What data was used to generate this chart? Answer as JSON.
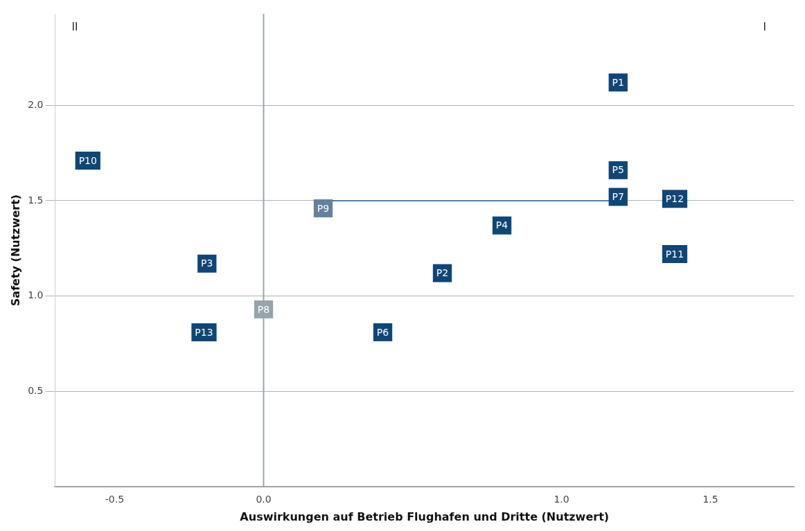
{
  "chart_data": {
    "type": "scatter",
    "xlabel": "Auswirkungen auf Betrieb Flughafen und Dritte (Nutzwert)",
    "ylabel": "Safety (Nutzwert)",
    "xlim": [
      -0.7,
      1.78
    ],
    "ylim": [
      0,
      2.48
    ],
    "xticks": [
      -0.5,
      {
        "value": 0,
        "label": "0.0"
      },
      {
        "value": 1,
        "label": "1.0"
      },
      1.5
    ],
    "yticks": [
      0.5,
      {
        "value": 1,
        "label": "1.0"
      },
      1.5,
      {
        "value": 2,
        "label": "2.0"
      }
    ],
    "grid": "y",
    "legend": false,
    "marker": "square",
    "ref_lines": [
      {
        "axis": "x",
        "value": 0,
        "color": "#9aa6ab"
      }
    ],
    "annotations": [
      "II",
      "I"
    ],
    "series": [
      {
        "type": "line",
        "color": "#2f5f8f",
        "x": [
          0.2,
          1.19
        ],
        "values": [
          1.5,
          1.5
        ],
        "marker": "none"
      },
      {
        "name": "P1",
        "color": "#0f4677",
        "x": [
          1.19
        ],
        "values": [
          2.12
        ]
      },
      {
        "name": "P2",
        "color": "#0f4677",
        "x": [
          0.6
        ],
        "values": [
          1.12
        ]
      },
      {
        "name": "P3",
        "color": "#0f4677",
        "x": [
          -0.19
        ],
        "values": [
          1.17
        ]
      },
      {
        "name": "P4",
        "color": "#0f4677",
        "x": [
          0.8
        ],
        "values": [
          1.37
        ]
      },
      {
        "name": "P5",
        "color": "#0f4677",
        "x": [
          1.19
        ],
        "values": [
          1.66
        ]
      },
      {
        "name": "P6",
        "color": "#0f4677",
        "x": [
          0.4
        ],
        "values": [
          0.81
        ]
      },
      {
        "name": "P7",
        "color": "#0f4677",
        "x": [
          1.19
        ],
        "values": [
          1.52
        ]
      },
      {
        "name": "P8",
        "color": "#98a4ab",
        "x": [
          0.0
        ],
        "values": [
          0.93
        ]
      },
      {
        "name": "P9",
        "color": "#66809f",
        "x": [
          0.2
        ],
        "values": [
          1.46
        ]
      },
      {
        "name": "P10",
        "color": "#0f4677",
        "x": [
          -0.59
        ],
        "values": [
          1.71
        ]
      },
      {
        "name": "P11",
        "color": "#0f4677",
        "x": [
          1.38
        ],
        "values": [
          1.22
        ]
      },
      {
        "name": "P12",
        "color": "#0f4677",
        "x": [
          1.38
        ],
        "values": [
          1.51
        ]
      },
      {
        "name": "P13",
        "color": "#0f4677",
        "x": [
          -0.2
        ],
        "values": [
          0.81
        ]
      }
    ]
  }
}
